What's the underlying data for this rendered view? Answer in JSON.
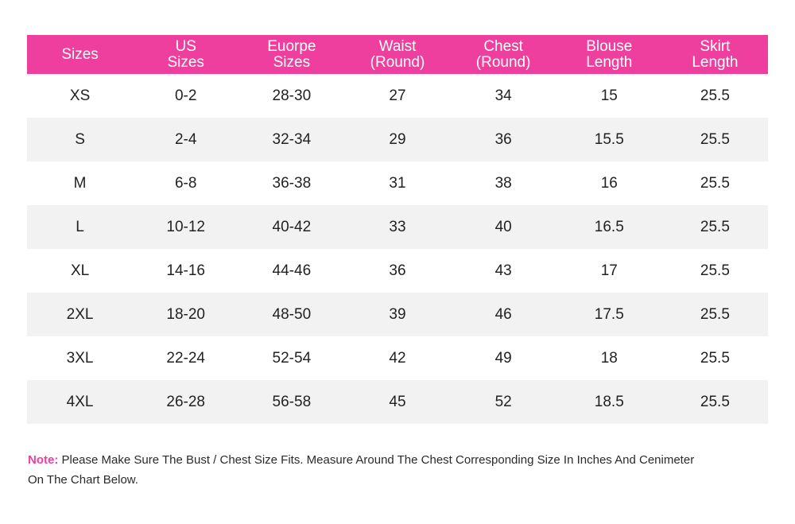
{
  "colors": {
    "header_bg": "#ef3f9e",
    "header_text": "#ffffff",
    "stripe_bg": "#f2f2f2",
    "note_label": "#ef3f9e"
  },
  "table": {
    "columns": [
      {
        "lines": [
          "Sizes"
        ]
      },
      {
        "lines": [
          "US",
          "Sizes"
        ]
      },
      {
        "lines": [
          "Euorpe",
          "Sizes"
        ]
      },
      {
        "lines": [
          "Waist",
          "(Round)"
        ]
      },
      {
        "lines": [
          "Chest",
          "(Round)"
        ]
      },
      {
        "lines": [
          "Blouse",
          "Length"
        ]
      },
      {
        "lines": [
          "Skirt",
          "Length"
        ]
      }
    ],
    "rows": [
      [
        "XS",
        "0-2",
        "28-30",
        "27",
        "34",
        "15",
        "25.5"
      ],
      [
        "S",
        "2-4",
        "32-34",
        "29",
        "36",
        "15.5",
        "25.5"
      ],
      [
        "M",
        "6-8",
        "36-38",
        "31",
        "38",
        "16",
        "25.5"
      ],
      [
        "L",
        "10-12",
        "40-42",
        "33",
        "40",
        "16.5",
        "25.5"
      ],
      [
        "XL",
        "14-16",
        "44-46",
        "36",
        "43",
        "17",
        "25.5"
      ],
      [
        "2XL",
        "18-20",
        "48-50",
        "39",
        "46",
        "17.5",
        "25.5"
      ],
      [
        "3XL",
        "22-24",
        "52-54",
        "42",
        "49",
        "18",
        "25.5"
      ],
      [
        "4XL",
        "26-28",
        "56-58",
        "45",
        "52",
        "18.5",
        "25.5"
      ]
    ]
  },
  "note": {
    "label": "Note:",
    "text": " Please Make Sure The Bust / Chest Size Fits. Measure Around The Chest Corresponding Size In Inches And Cenimeter On The Chart Below."
  }
}
